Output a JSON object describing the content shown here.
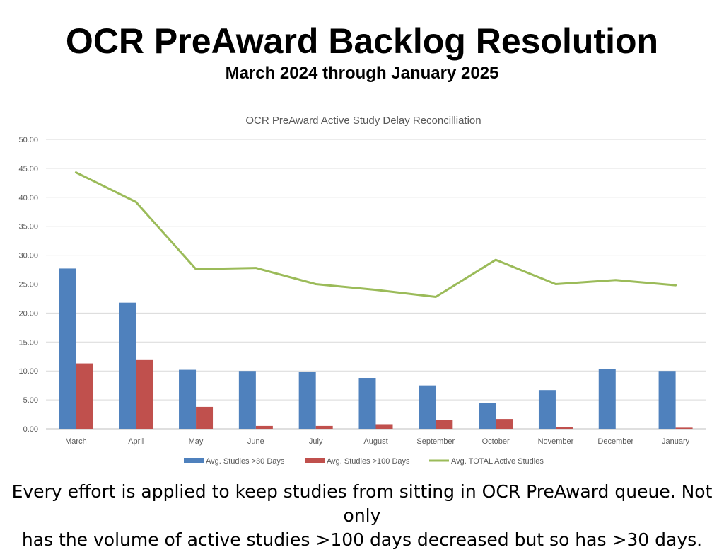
{
  "slide": {
    "title": "OCR PreAward Backlog Resolution",
    "subtitle": "March 2024 through January 2025",
    "footer_lines": [
      "Every effort is applied to keep studies from sitting in OCR PreAward queue. Not only",
      "has the volume of active studies >100 days decreased but so has >30 days."
    ]
  },
  "chart_data": {
    "type": "bar",
    "title": "OCR PreAward Active Study Delay Reconcilliation",
    "categories": [
      "March",
      "April",
      "May",
      "June",
      "July",
      "August",
      "September",
      "October",
      "November",
      "December",
      "January"
    ],
    "ylim": [
      0,
      50
    ],
    "yticks": [
      "0.00",
      "5.00",
      "10.00",
      "15.00",
      "20.00",
      "25.00",
      "30.00",
      "35.00",
      "40.00",
      "45.00",
      "50.00"
    ],
    "grid": true,
    "legend_position": "bottom",
    "series": [
      {
        "name": "Avg. Studies >30 Days",
        "type": "bar",
        "color": "#4F81BD",
        "values": [
          27.7,
          21.8,
          10.2,
          10.0,
          9.8,
          8.8,
          7.5,
          4.5,
          6.7,
          10.3,
          10.0
        ]
      },
      {
        "name": "Avg. Studies >100 Days",
        "type": "bar",
        "color": "#C0504D",
        "values": [
          11.3,
          12.0,
          3.8,
          0.5,
          0.5,
          0.8,
          1.5,
          1.7,
          0.3,
          0,
          0.2
        ]
      },
      {
        "name": "Avg. TOTAL Active Studies",
        "type": "line",
        "color": "#9BBB59",
        "values": [
          44.3,
          39.2,
          27.6,
          27.8,
          25.0,
          24.0,
          22.8,
          29.2,
          25.0,
          25.7,
          24.8
        ]
      }
    ]
  }
}
